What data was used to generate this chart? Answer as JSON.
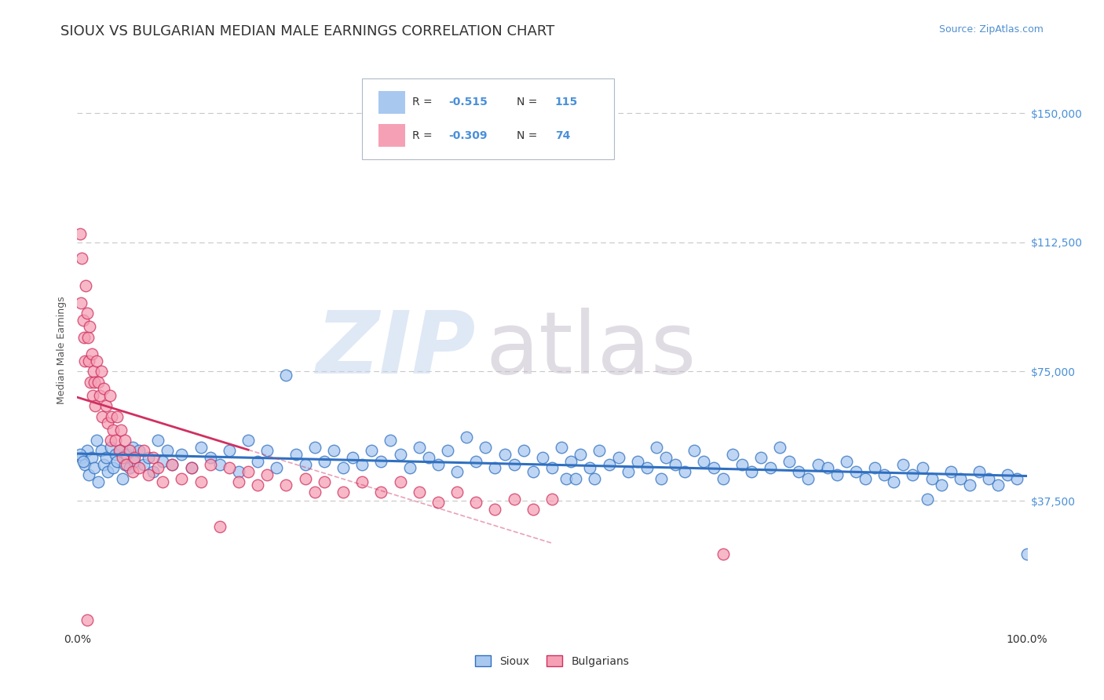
{
  "title": "SIOUX VS BULGARIAN MEDIAN MALE EARNINGS CORRELATION CHART",
  "source": "Source: ZipAtlas.com",
  "ylabel": "Median Male Earnings",
  "y_ticks": [
    0,
    37500,
    75000,
    112500,
    150000
  ],
  "y_right_tick_labels": [
    "",
    "$37,500",
    "$75,000",
    "$112,500",
    "$150,000"
  ],
  "xlim": [
    0.0,
    1.0
  ],
  "ylim": [
    0,
    162500
  ],
  "sioux_color": "#a8c8f0",
  "sioux_line_color": "#3070c0",
  "bulgarian_color": "#f5a0b5",
  "bulgarian_line_color": "#d03060",
  "background_color": "#ffffff",
  "grid_color": "#c8c8c8",
  "title_fontsize": 13,
  "axis_label_fontsize": 9,
  "legend_fontsize": 10,
  "source_fontsize": 9,
  "sioux_points": [
    [
      0.005,
      50000
    ],
    [
      0.008,
      48000
    ],
    [
      0.01,
      52000
    ],
    [
      0.012,
      45000
    ],
    [
      0.015,
      50000
    ],
    [
      0.018,
      47000
    ],
    [
      0.02,
      55000
    ],
    [
      0.022,
      43000
    ],
    [
      0.025,
      52000
    ],
    [
      0.028,
      48000
    ],
    [
      0.03,
      50000
    ],
    [
      0.032,
      46000
    ],
    [
      0.035,
      53000
    ],
    [
      0.038,
      47000
    ],
    [
      0.04,
      51000
    ],
    [
      0.042,
      49000
    ],
    [
      0.045,
      52000
    ],
    [
      0.048,
      44000
    ],
    [
      0.05,
      48000
    ],
    [
      0.052,
      51000
    ],
    [
      0.055,
      47000
    ],
    [
      0.058,
      53000
    ],
    [
      0.06,
      49000
    ],
    [
      0.065,
      52000
    ],
    [
      0.07,
      48000
    ],
    [
      0.075,
      50000
    ],
    [
      0.08,
      46000
    ],
    [
      0.085,
      55000
    ],
    [
      0.09,
      49000
    ],
    [
      0.095,
      52000
    ],
    [
      0.1,
      48000
    ],
    [
      0.11,
      51000
    ],
    [
      0.12,
      47000
    ],
    [
      0.13,
      53000
    ],
    [
      0.14,
      50000
    ],
    [
      0.15,
      48000
    ],
    [
      0.16,
      52000
    ],
    [
      0.17,
      46000
    ],
    [
      0.18,
      55000
    ],
    [
      0.19,
      49000
    ],
    [
      0.2,
      52000
    ],
    [
      0.21,
      47000
    ],
    [
      0.22,
      74000
    ],
    [
      0.23,
      51000
    ],
    [
      0.24,
      48000
    ],
    [
      0.25,
      53000
    ],
    [
      0.26,
      49000
    ],
    [
      0.27,
      52000
    ],
    [
      0.28,
      47000
    ],
    [
      0.29,
      50000
    ],
    [
      0.3,
      48000
    ],
    [
      0.31,
      52000
    ],
    [
      0.32,
      49000
    ],
    [
      0.33,
      55000
    ],
    [
      0.34,
      51000
    ],
    [
      0.35,
      47000
    ],
    [
      0.36,
      53000
    ],
    [
      0.37,
      50000
    ],
    [
      0.38,
      48000
    ],
    [
      0.39,
      52000
    ],
    [
      0.4,
      46000
    ],
    [
      0.41,
      56000
    ],
    [
      0.42,
      49000
    ],
    [
      0.43,
      53000
    ],
    [
      0.44,
      47000
    ],
    [
      0.45,
      51000
    ],
    [
      0.46,
      48000
    ],
    [
      0.47,
      52000
    ],
    [
      0.48,
      46000
    ],
    [
      0.49,
      50000
    ],
    [
      0.5,
      47000
    ],
    [
      0.51,
      53000
    ],
    [
      0.515,
      44000
    ],
    [
      0.52,
      49000
    ],
    [
      0.525,
      44000
    ],
    [
      0.53,
      51000
    ],
    [
      0.54,
      47000
    ],
    [
      0.545,
      44000
    ],
    [
      0.55,
      52000
    ],
    [
      0.56,
      48000
    ],
    [
      0.57,
      50000
    ],
    [
      0.58,
      46000
    ],
    [
      0.59,
      49000
    ],
    [
      0.6,
      47000
    ],
    [
      0.61,
      53000
    ],
    [
      0.615,
      44000
    ],
    [
      0.62,
      50000
    ],
    [
      0.63,
      48000
    ],
    [
      0.64,
      46000
    ],
    [
      0.65,
      52000
    ],
    [
      0.66,
      49000
    ],
    [
      0.67,
      47000
    ],
    [
      0.68,
      44000
    ],
    [
      0.69,
      51000
    ],
    [
      0.7,
      48000
    ],
    [
      0.71,
      46000
    ],
    [
      0.72,
      50000
    ],
    [
      0.73,
      47000
    ],
    [
      0.74,
      53000
    ],
    [
      0.75,
      49000
    ],
    [
      0.76,
      46000
    ],
    [
      0.77,
      44000
    ],
    [
      0.78,
      48000
    ],
    [
      0.79,
      47000
    ],
    [
      0.8,
      45000
    ],
    [
      0.81,
      49000
    ],
    [
      0.82,
      46000
    ],
    [
      0.83,
      44000
    ],
    [
      0.84,
      47000
    ],
    [
      0.85,
      45000
    ],
    [
      0.86,
      43000
    ],
    [
      0.87,
      48000
    ],
    [
      0.88,
      45000
    ],
    [
      0.89,
      47000
    ],
    [
      0.895,
      38000
    ],
    [
      0.9,
      44000
    ],
    [
      0.91,
      42000
    ],
    [
      0.92,
      46000
    ],
    [
      0.93,
      44000
    ],
    [
      0.94,
      42000
    ],
    [
      0.95,
      46000
    ],
    [
      0.96,
      44000
    ],
    [
      0.97,
      42000
    ],
    [
      0.98,
      45000
    ],
    [
      0.99,
      44000
    ],
    [
      0.003,
      51000
    ],
    [
      0.006,
      49000
    ],
    [
      1.0,
      22000
    ]
  ],
  "bulgarian_points": [
    [
      0.003,
      115000
    ],
    [
      0.004,
      95000
    ],
    [
      0.005,
      108000
    ],
    [
      0.006,
      90000
    ],
    [
      0.007,
      85000
    ],
    [
      0.008,
      78000
    ],
    [
      0.009,
      100000
    ],
    [
      0.01,
      92000
    ],
    [
      0.011,
      85000
    ],
    [
      0.012,
      78000
    ],
    [
      0.013,
      88000
    ],
    [
      0.014,
      72000
    ],
    [
      0.015,
      80000
    ],
    [
      0.016,
      68000
    ],
    [
      0.017,
      75000
    ],
    [
      0.018,
      72000
    ],
    [
      0.019,
      65000
    ],
    [
      0.02,
      78000
    ],
    [
      0.022,
      72000
    ],
    [
      0.024,
      68000
    ],
    [
      0.025,
      75000
    ],
    [
      0.026,
      62000
    ],
    [
      0.028,
      70000
    ],
    [
      0.03,
      65000
    ],
    [
      0.032,
      60000
    ],
    [
      0.034,
      68000
    ],
    [
      0.035,
      55000
    ],
    [
      0.036,
      62000
    ],
    [
      0.038,
      58000
    ],
    [
      0.04,
      55000
    ],
    [
      0.042,
      62000
    ],
    [
      0.044,
      52000
    ],
    [
      0.046,
      58000
    ],
    [
      0.048,
      50000
    ],
    [
      0.05,
      55000
    ],
    [
      0.052,
      48000
    ],
    [
      0.055,
      52000
    ],
    [
      0.058,
      46000
    ],
    [
      0.06,
      50000
    ],
    [
      0.065,
      47000
    ],
    [
      0.07,
      52000
    ],
    [
      0.075,
      45000
    ],
    [
      0.08,
      50000
    ],
    [
      0.085,
      47000
    ],
    [
      0.09,
      43000
    ],
    [
      0.1,
      48000
    ],
    [
      0.11,
      44000
    ],
    [
      0.12,
      47000
    ],
    [
      0.13,
      43000
    ],
    [
      0.14,
      48000
    ],
    [
      0.15,
      30000
    ],
    [
      0.16,
      47000
    ],
    [
      0.17,
      43000
    ],
    [
      0.18,
      46000
    ],
    [
      0.19,
      42000
    ],
    [
      0.2,
      45000
    ],
    [
      0.22,
      42000
    ],
    [
      0.24,
      44000
    ],
    [
      0.25,
      40000
    ],
    [
      0.26,
      43000
    ],
    [
      0.28,
      40000
    ],
    [
      0.3,
      43000
    ],
    [
      0.32,
      40000
    ],
    [
      0.34,
      43000
    ],
    [
      0.36,
      40000
    ],
    [
      0.38,
      37000
    ],
    [
      0.4,
      40000
    ],
    [
      0.42,
      37000
    ],
    [
      0.44,
      35000
    ],
    [
      0.46,
      38000
    ],
    [
      0.48,
      35000
    ],
    [
      0.5,
      38000
    ],
    [
      0.01,
      3000
    ],
    [
      0.68,
      22000
    ]
  ]
}
